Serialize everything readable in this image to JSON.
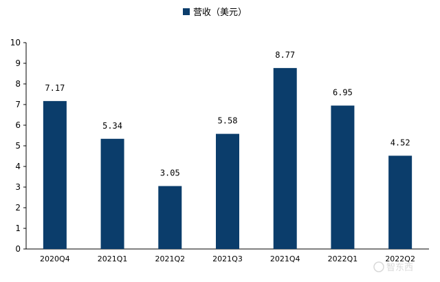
{
  "chart_data": {
    "type": "bar",
    "categories": [
      "2020Q4",
      "2021Q1",
      "2021Q2",
      "2021Q3",
      "2021Q4",
      "2022Q1",
      "2022Q2"
    ],
    "series": [
      {
        "name": "营收（美元）",
        "values": [
          7.17,
          5.34,
          3.05,
          5.58,
          8.77,
          6.95,
          4.52
        ],
        "labels": [
          "7.17",
          "5.34",
          "3.05",
          "5.58",
          "8.77",
          "6.95",
          "4.52"
        ],
        "color": "#0b3d6b"
      }
    ],
    "y_ticks": [
      "0",
      "1",
      "2",
      "3",
      "4",
      "5",
      "6",
      "7",
      "8",
      "9",
      "10"
    ],
    "ylim": [
      0,
      10
    ],
    "grid": false,
    "legend_position": "top-center"
  },
  "watermark": {
    "text": "智东西"
  }
}
